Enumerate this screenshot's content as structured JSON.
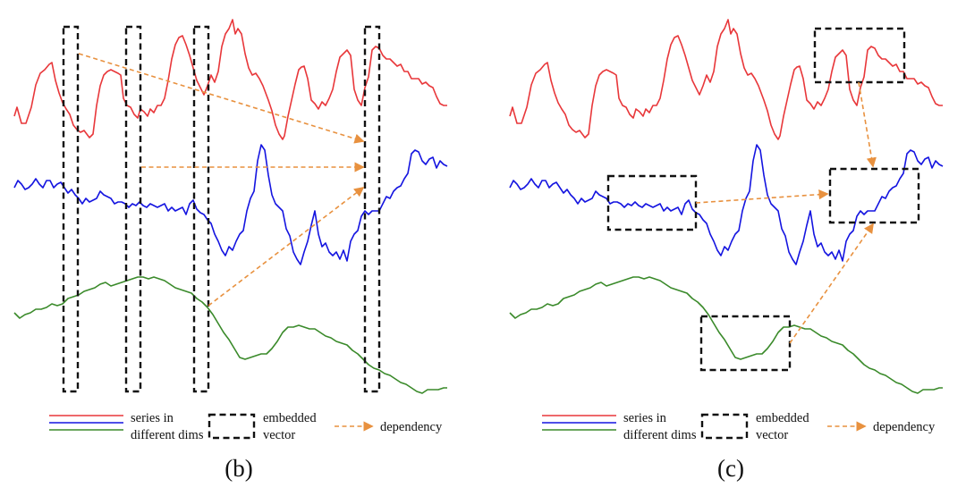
{
  "colors": {
    "series_red": "#e8373a",
    "series_blue": "#1414e0",
    "series_green": "#3a8a2a",
    "box": "#111111",
    "dependency": "#e8913f"
  },
  "legend": {
    "series_line1": "series in",
    "series_line2": "different dims",
    "box_line1": "embedded",
    "box_line2": "vector",
    "dependency": "dependency"
  },
  "panels": [
    {
      "id": "b",
      "caption": "(b)"
    },
    {
      "id": "c",
      "caption": "(c)"
    }
  ]
}
